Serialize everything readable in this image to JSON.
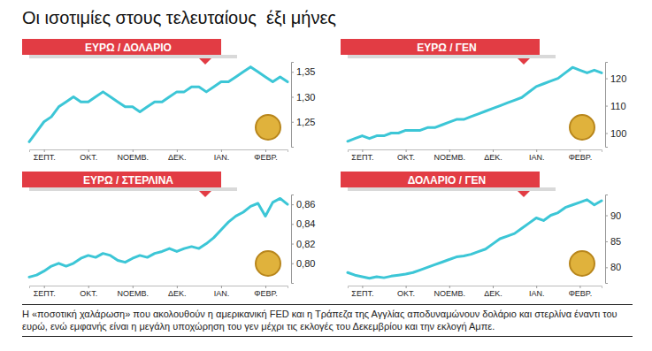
{
  "title": "Οι ισοτιμίες στους τελευταίους  έξι μήνες",
  "caption": "Η «ποσοτική χαλάρωση» που ακολουθούν η αμερικανική FED και η Τράπεζα της Αγγλίας αποδυναμώνουν δολάριο και στερλίνα έναντι του ευρώ, ενώ εμφανής είναι η μεγάλη υποχώρηση του γεν μέχρι τις εκλογές του Δεκεμβρίου και την εκλογή Αμπε.",
  "chart_data": [
    {
      "type": "line",
      "title": "ΕΥΡΩ / ΔΟΛΑΡΙΟ",
      "color": "#3cc6d6",
      "grid": false,
      "categories": [
        null,
        null,
        "ΣΕΠΤ.",
        null,
        null,
        null,
        null,
        null,
        "ΟΚΤ.",
        null,
        null,
        null,
        null,
        null,
        "ΝΟΕΜΒ.",
        null,
        null,
        null,
        null,
        null,
        "ΔΕΚ.",
        null,
        null,
        null,
        null,
        null,
        "ΙΑΝ.",
        null,
        null,
        null,
        null,
        null,
        "ΦΕΒΡ.",
        null,
        null,
        null
      ],
      "values": [
        1.21,
        1.23,
        1.25,
        1.26,
        1.28,
        1.29,
        1.3,
        1.29,
        1.29,
        1.3,
        1.31,
        1.3,
        1.29,
        1.28,
        1.28,
        1.27,
        1.28,
        1.29,
        1.29,
        1.3,
        1.31,
        1.31,
        1.32,
        1.32,
        1.31,
        1.32,
        1.33,
        1.33,
        1.34,
        1.35,
        1.36,
        1.35,
        1.34,
        1.33,
        1.34,
        1.33
      ],
      "ylim": [
        1.2,
        1.37
      ],
      "yticks": [
        {
          "value": 1.25,
          "label": "1,25"
        },
        {
          "value": 1.3,
          "label": "1,30"
        },
        {
          "value": 1.35,
          "label": "1,35"
        }
      ]
    },
    {
      "type": "line",
      "title": "ΕΥΡΩ / ΓΕΝ",
      "color": "#3cc6d6",
      "grid": false,
      "categories": [
        null,
        null,
        "ΣΕΠΤ.",
        null,
        null,
        null,
        null,
        null,
        "ΟΚΤ.",
        null,
        null,
        null,
        null,
        null,
        "ΝΟΕΜΒ.",
        null,
        null,
        null,
        null,
        null,
        "ΔΕΚ.",
        null,
        null,
        null,
        null,
        null,
        "ΙΑΝ.",
        null,
        null,
        null,
        null,
        null,
        "ΦΕΒΡ.",
        null,
        null,
        null
      ],
      "values": [
        97,
        98,
        99,
        98,
        99,
        99,
        100,
        100,
        101,
        101,
        101,
        102,
        102,
        103,
        104,
        105,
        105,
        106,
        107,
        108,
        109,
        110,
        111,
        112,
        113,
        115,
        117,
        118,
        119,
        120,
        122,
        124,
        123,
        122,
        123,
        122
      ],
      "ylim": [
        95,
        126
      ],
      "yticks": [
        100,
        110,
        120
      ]
    },
    {
      "type": "line",
      "title": "ΕΥΡΩ / ΣΤΕΡΛΙΝΑ",
      "color": "#3cc6d6",
      "grid": false,
      "categories": [
        null,
        null,
        "ΣΕΠΤ.",
        null,
        null,
        null,
        null,
        null,
        "ΟΚΤ.",
        null,
        null,
        null,
        null,
        null,
        "ΝΟΕΜΒ.",
        null,
        null,
        null,
        null,
        null,
        "ΔΕΚ.",
        null,
        null,
        null,
        null,
        null,
        "ΙΑΝ.",
        null,
        null,
        null,
        null,
        null,
        "ΦΕΒΡ.",
        null,
        null,
        null
      ],
      "values": [
        0.786,
        0.788,
        0.792,
        0.797,
        0.8,
        0.797,
        0.8,
        0.805,
        0.808,
        0.806,
        0.81,
        0.808,
        0.803,
        0.801,
        0.805,
        0.808,
        0.806,
        0.81,
        0.812,
        0.815,
        0.812,
        0.815,
        0.817,
        0.815,
        0.82,
        0.826,
        0.834,
        0.842,
        0.848,
        0.852,
        0.858,
        0.861,
        0.848,
        0.862,
        0.866,
        0.86
      ],
      "ylim": [
        0.78,
        0.87
      ],
      "yticks": [
        {
          "value": 0.8,
          "label": "0,80"
        },
        {
          "value": 0.82,
          "label": "0,82"
        },
        {
          "value": 0.84,
          "label": "0,84"
        },
        {
          "value": 0.86,
          "label": "0,86"
        }
      ]
    },
    {
      "type": "line",
      "title": "ΔΟΛΑΡΙΟ / ΓΕΝ",
      "color": "#3cc6d6",
      "grid": false,
      "categories": [
        null,
        null,
        "ΣΕΠΤ.",
        null,
        null,
        null,
        null,
        null,
        "ΟΚΤ.",
        null,
        null,
        null,
        null,
        null,
        "ΝΟΕΜΒ.",
        null,
        null,
        null,
        null,
        null,
        "ΔΕΚ.",
        null,
        null,
        null,
        null,
        null,
        "ΙΑΝ.",
        null,
        null,
        null,
        null,
        null,
        "ΦΕΒΡ.",
        null,
        null,
        null
      ],
      "values": [
        79.0,
        78.5,
        78.2,
        77.9,
        78.2,
        78.0,
        78.3,
        78.5,
        78.7,
        79.0,
        79.5,
        80.0,
        80.5,
        81.0,
        81.5,
        82.0,
        82.2,
        82.5,
        83.0,
        83.5,
        84.5,
        85.5,
        86.0,
        86.5,
        87.5,
        88.5,
        89.5,
        89.0,
        90.0,
        90.5,
        91.5,
        92.0,
        92.5,
        93.0,
        92.0,
        92.8
      ],
      "ylim": [
        77,
        94
      ],
      "yticks": [
        80,
        85,
        90
      ]
    }
  ]
}
